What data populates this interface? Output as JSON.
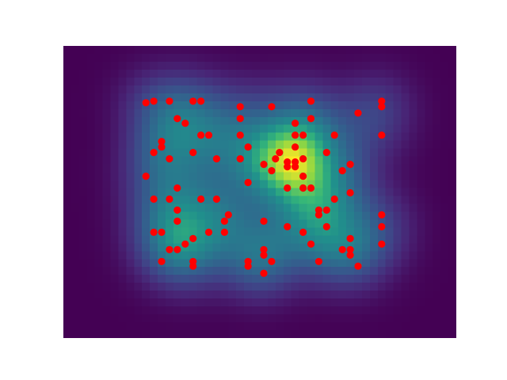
{
  "chart_data": {
    "type": "heatmap",
    "title": "",
    "xlabel": "",
    "ylabel": "",
    "axes_visible": false,
    "grid": false,
    "legend": "none",
    "xlim": [
      0,
      50
    ],
    "ylim": [
      0,
      37
    ],
    "colormap": "viridis",
    "heatmap_resolution": [
      50,
      37
    ],
    "kernel_sigma": 3.2,
    "overlay": {
      "type": "scatter",
      "color": "#ff0000",
      "points": [
        [
          10.5,
          29.8
        ],
        [
          11.5,
          30.0
        ],
        [
          13.5,
          30.0
        ],
        [
          16.5,
          30.0
        ],
        [
          17.5,
          30.0
        ],
        [
          22.5,
          29.3
        ],
        [
          26.5,
          29.3
        ],
        [
          31.5,
          30.0
        ],
        [
          40.5,
          29.3
        ],
        [
          37.5,
          28.5
        ],
        [
          40.5,
          30.0
        ],
        [
          14.5,
          27.8
        ],
        [
          15.5,
          27.2
        ],
        [
          22.5,
          27.8
        ],
        [
          29.5,
          27.2
        ],
        [
          31.5,
          27.8
        ],
        [
          17.5,
          25.7
        ],
        [
          18.5,
          25.7
        ],
        [
          22.5,
          25.7
        ],
        [
          29.5,
          25.7
        ],
        [
          30.5,
          25.7
        ],
        [
          34.5,
          25.7
        ],
        [
          40.5,
          25.7
        ],
        [
          12.5,
          24.9
        ],
        [
          12.5,
          24.2
        ],
        [
          23.5,
          24.2
        ],
        [
          29.5,
          24.2
        ],
        [
          11.5,
          23.5
        ],
        [
          16.5,
          23.5
        ],
        [
          27.5,
          23.5
        ],
        [
          33.5,
          23.5
        ],
        [
          13.5,
          22.7
        ],
        [
          19.5,
          22.7
        ],
        [
          22.5,
          22.7
        ],
        [
          27.0,
          22.7
        ],
        [
          28.5,
          22.3
        ],
        [
          29.5,
          22.3
        ],
        [
          30.5,
          22.7
        ],
        [
          28.5,
          21.7
        ],
        [
          29.5,
          21.7
        ],
        [
          25.5,
          22.0
        ],
        [
          26.5,
          21.2
        ],
        [
          36.5,
          22.0
        ],
        [
          35.5,
          21.2
        ],
        [
          10.5,
          20.5
        ],
        [
          30.5,
          20.5
        ],
        [
          23.5,
          19.7
        ],
        [
          14.5,
          19.0
        ],
        [
          28.5,
          19.0
        ],
        [
          30.5,
          19.0
        ],
        [
          31.5,
          19.0
        ],
        [
          36.5,
          18.4
        ],
        [
          11.5,
          17.6
        ],
        [
          13.5,
          17.6
        ],
        [
          17.5,
          17.6
        ],
        [
          19.5,
          17.6
        ],
        [
          34.5,
          17.6
        ],
        [
          14.5,
          16.2
        ],
        [
          32.5,
          16.2
        ],
        [
          32.5,
          15.6
        ],
        [
          33.5,
          16.2
        ],
        [
          21.0,
          15.6
        ],
        [
          40.5,
          15.6
        ],
        [
          14.5,
          14.8
        ],
        [
          20.5,
          14.8
        ],
        [
          25.5,
          14.8
        ],
        [
          28.5,
          14.1
        ],
        [
          33.5,
          14.1
        ],
        [
          40.5,
          14.1
        ],
        [
          11.5,
          13.4
        ],
        [
          12.5,
          13.4
        ],
        [
          18.5,
          13.4
        ],
        [
          20.5,
          13.4
        ],
        [
          30.5,
          13.4
        ],
        [
          16.5,
          12.6
        ],
        [
          36.5,
          12.6
        ],
        [
          15.5,
          11.9
        ],
        [
          31.5,
          11.9
        ],
        [
          40.5,
          11.9
        ],
        [
          13.5,
          11.2
        ],
        [
          14.5,
          11.2
        ],
        [
          25.5,
          11.2
        ],
        [
          35.5,
          11.2
        ],
        [
          36.5,
          11.2
        ],
        [
          36.5,
          10.5
        ],
        [
          25.5,
          10.5
        ],
        [
          12.5,
          9.7
        ],
        [
          16.5,
          9.7
        ],
        [
          16.5,
          9.1
        ],
        [
          23.5,
          9.7
        ],
        [
          23.5,
          9.1
        ],
        [
          26.5,
          9.7
        ],
        [
          32.5,
          9.7
        ],
        [
          37.5,
          9.1
        ],
        [
          25.5,
          8.2
        ]
      ]
    }
  }
}
